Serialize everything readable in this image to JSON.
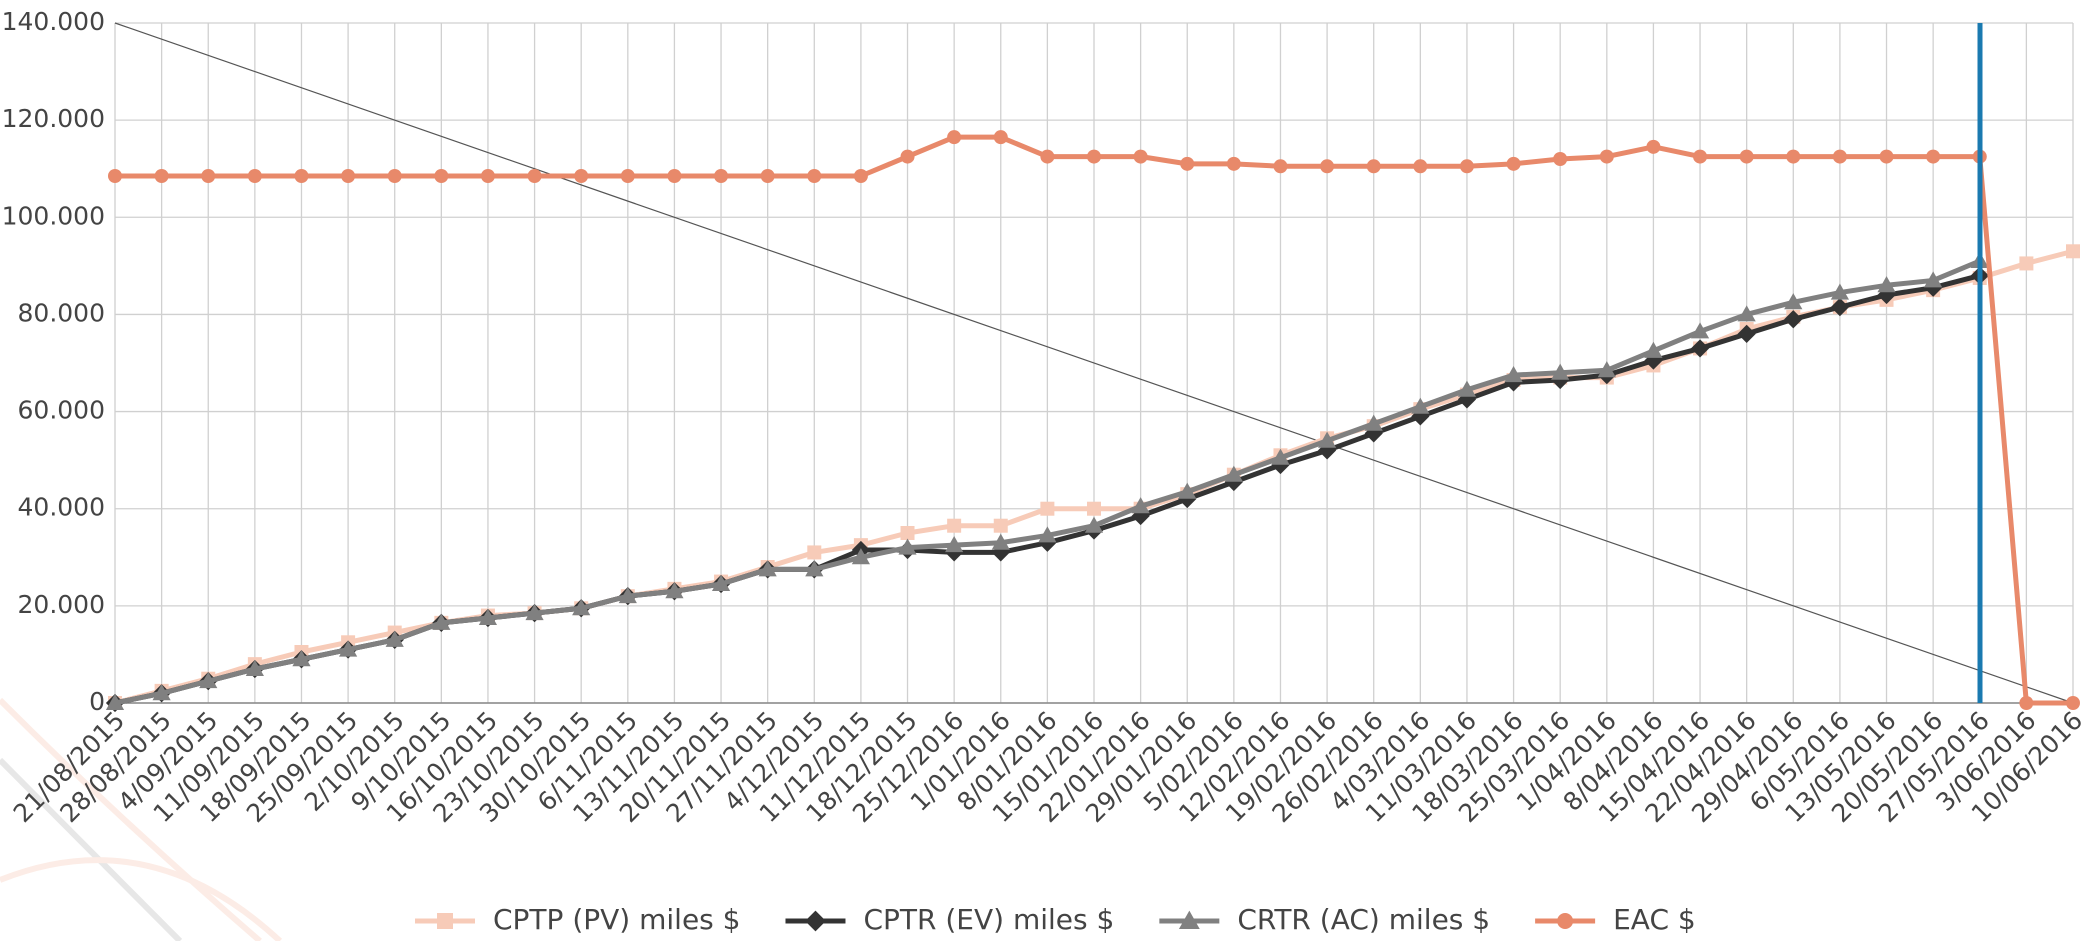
{
  "chart_data": {
    "type": "line",
    "categories": [
      "21/08/2015",
      "28/08/2015",
      "4/09/2015",
      "11/09/2015",
      "18/09/2015",
      "25/09/2015",
      "2/10/2015",
      "9/10/2015",
      "16/10/2015",
      "23/10/2015",
      "30/10/2015",
      "6/11/2015",
      "13/11/2015",
      "20/11/2015",
      "27/11/2015",
      "4/12/2015",
      "11/12/2015",
      "18/12/2015",
      "25/12/2016",
      "1/01/2016",
      "8/01/2016",
      "15/01/2016",
      "22/01/2016",
      "29/01/2016",
      "5/02/2016",
      "12/02/2016",
      "19/02/2016",
      "26/02/2016",
      "4/03/2016",
      "11/03/2016",
      "18/03/2016",
      "25/03/2016",
      "1/04/2016",
      "8/04/2016",
      "15/04/2016",
      "22/04/2016",
      "29/04/2016",
      "6/05/2016",
      "13/05/2016",
      "20/05/2016",
      "27/05/2016",
      "3/06/2016",
      "10/06/2016"
    ],
    "series": [
      {
        "name": "CPTP (PV) miles $",
        "color": "#f7cbb8",
        "marker": "square",
        "values": [
          0,
          2500,
          5000,
          8000,
          10500,
          12500,
          14500,
          16500,
          18000,
          18500,
          19500,
          22000,
          23500,
          25000,
          28000,
          31000,
          32500,
          35000,
          36500,
          36500,
          40000,
          40000,
          40000,
          43000,
          47000,
          51000,
          54500,
          57000,
          60500,
          63500,
          66500,
          67000,
          67000,
          69500,
          73000,
          77000,
          79500,
          81500,
          83000,
          85000,
          87500,
          90500,
          93000
        ]
      },
      {
        "name": "CPTR (EV) miles $",
        "color": "#333333",
        "marker": "diamond",
        "values": [
          0,
          2000,
          4500,
          7000,
          9000,
          11000,
          13000,
          16500,
          17500,
          18500,
          19500,
          22000,
          23000,
          24500,
          27500,
          27500,
          31500,
          31500,
          31000,
          31000,
          33000,
          35500,
          38500,
          42000,
          45500,
          49000,
          52000,
          55500,
          59000,
          62500,
          66000,
          66500,
          67500,
          70500,
          73000,
          76000,
          79000,
          81500,
          84000,
          85500,
          88000,
          null,
          null
        ]
      },
      {
        "name": "CRTR (AC) miles $",
        "color": "#808080",
        "marker": "triangle",
        "values": [
          0,
          2000,
          4500,
          7000,
          9000,
          11000,
          13000,
          16500,
          17500,
          18500,
          19500,
          22000,
          23000,
          24500,
          27500,
          27500,
          30000,
          32000,
          32500,
          33000,
          34500,
          36500,
          40500,
          43500,
          47000,
          50500,
          54000,
          57500,
          61000,
          64500,
          67500,
          68000,
          68500,
          72500,
          76500,
          80000,
          82500,
          84500,
          86000,
          87000,
          91000,
          null,
          null
        ]
      },
      {
        "name": "EAC $",
        "color": "#e8896a",
        "marker": "circle",
        "values": [
          108500,
          108500,
          108500,
          108500,
          108500,
          108500,
          108500,
          108500,
          108500,
          108500,
          108500,
          108500,
          108500,
          108500,
          108500,
          108500,
          108500,
          112500,
          116500,
          116500,
          112500,
          112500,
          112500,
          111000,
          111000,
          110500,
          110500,
          110500,
          110500,
          110500,
          111000,
          112000,
          112500,
          114500,
          112500,
          112500,
          112500,
          112500,
          112500,
          112500,
          112500,
          0,
          0
        ]
      }
    ],
    "ylim": [
      0,
      140000
    ],
    "yticks": [
      0,
      {
        "value": 20000,
        "label": "20.000"
      },
      {
        "value": 40000,
        "label": "40.000"
      },
      {
        "value": 60000,
        "label": "60.000"
      },
      {
        "value": 80000,
        "label": "80.000"
      },
      {
        "value": 100000,
        "label": "100.000"
      },
      {
        "value": 120000,
        "label": "120.000"
      },
      {
        "value": 140000,
        "label": "140.000"
      }
    ],
    "grid": true
  }
}
